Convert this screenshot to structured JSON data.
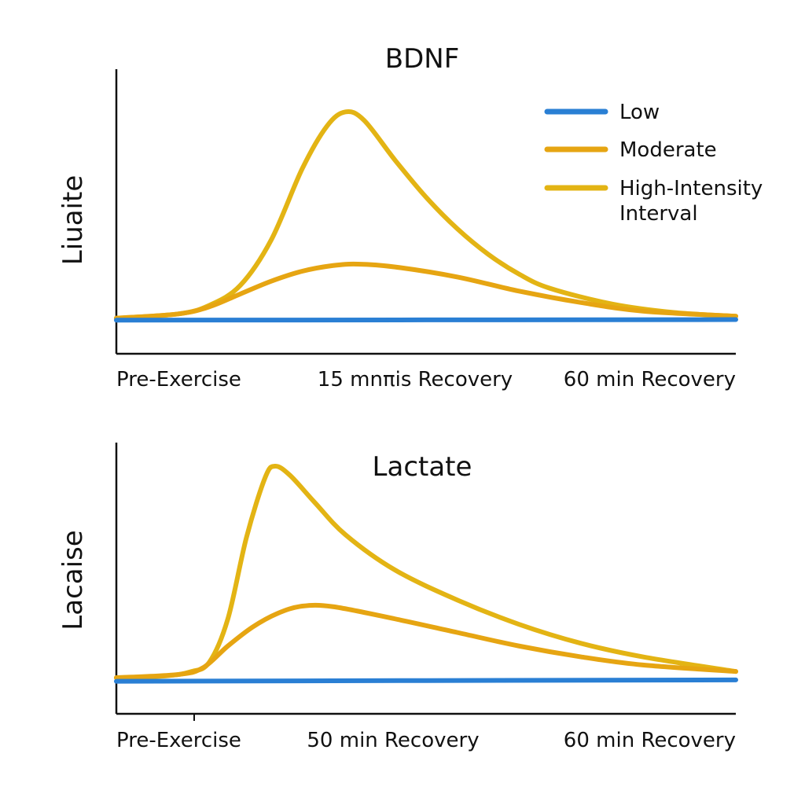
{
  "colors": {
    "Low": "#2a7fd4",
    "Moderate": "#e6a512",
    "High-Intensity Interval": "#e3b414",
    "axis": "#111111"
  },
  "legend": {
    "position": "top-right",
    "entries": [
      "Low",
      "Moderate",
      "High-Intensity Interval"
    ],
    "line1": [
      "Low",
      "Moderate",
      "High-Intensity"
    ],
    "line2": [
      "",
      "",
      "Interval"
    ]
  },
  "chart_data": [
    {
      "type": "line",
      "title": "BDNF",
      "ylabel": "Liuaite",
      "xlabel": "",
      "xlim": [
        0,
        100
      ],
      "ylim": [
        0,
        100
      ],
      "grid": false,
      "x_tick_labels": [
        "Pre-Exercise",
        "15 mnπis Recovery",
        "60 min Recovery"
      ],
      "series": [
        {
          "name": "Low",
          "x": [
            0,
            100
          ],
          "y": [
            11.8,
            12
          ]
        },
        {
          "name": "Moderate",
          "x": [
            0,
            10,
            15,
            20,
            25,
            30,
            35,
            39,
            45,
            55,
            65,
            75,
            85,
            100
          ],
          "y": [
            12.5,
            14,
            16.5,
            21,
            25.5,
            29,
            31,
            31.5,
            30.5,
            27,
            22,
            18,
            15,
            13.2
          ]
        },
        {
          "name": "High-Intensity Interval",
          "x": [
            0,
            10,
            15,
            20,
            25,
            30,
            34,
            37,
            40,
            45,
            50,
            55,
            60,
            65,
            70,
            80,
            90,
            100
          ],
          "y": [
            12.5,
            14,
            17,
            24,
            40,
            65,
            80,
            85,
            82,
            68,
            55,
            44,
            35,
            28,
            23,
            17.5,
            14.5,
            13.2
          ]
        }
      ]
    },
    {
      "type": "line",
      "title": "Lactate",
      "ylabel": "Lacaise",
      "xlabel": "",
      "xlim": [
        0,
        100
      ],
      "ylim": [
        0,
        100
      ],
      "grid": false,
      "x_tick_labels": [
        "Pre-Exercise",
        "50 min Recovery",
        "60 min Recovery"
      ],
      "series": [
        {
          "name": "Low",
          "x": [
            0,
            100
          ],
          "y": [
            12,
            12.5
          ]
        },
        {
          "name": "Moderate",
          "x": [
            0,
            10,
            14,
            18,
            22,
            26,
            30,
            35,
            45,
            55,
            65,
            75,
            85,
            100
          ],
          "y": [
            13.3,
            14.5,
            17,
            25,
            32,
            37,
            39.7,
            39.5,
            35,
            30,
            25,
            21,
            18,
            15.6
          ]
        },
        {
          "name": "High-Intensity Interval",
          "x": [
            0,
            8,
            12,
            15,
            18,
            21,
            24,
            25.6,
            28,
            32,
            37,
            45,
            55,
            65,
            75,
            85,
            100
          ],
          "y": [
            13.3,
            14,
            15.5,
            19,
            35,
            65,
            87,
            91.3,
            88,
            78,
            66,
            53,
            42,
            33,
            26,
            21,
            15.6
          ]
        }
      ]
    }
  ]
}
